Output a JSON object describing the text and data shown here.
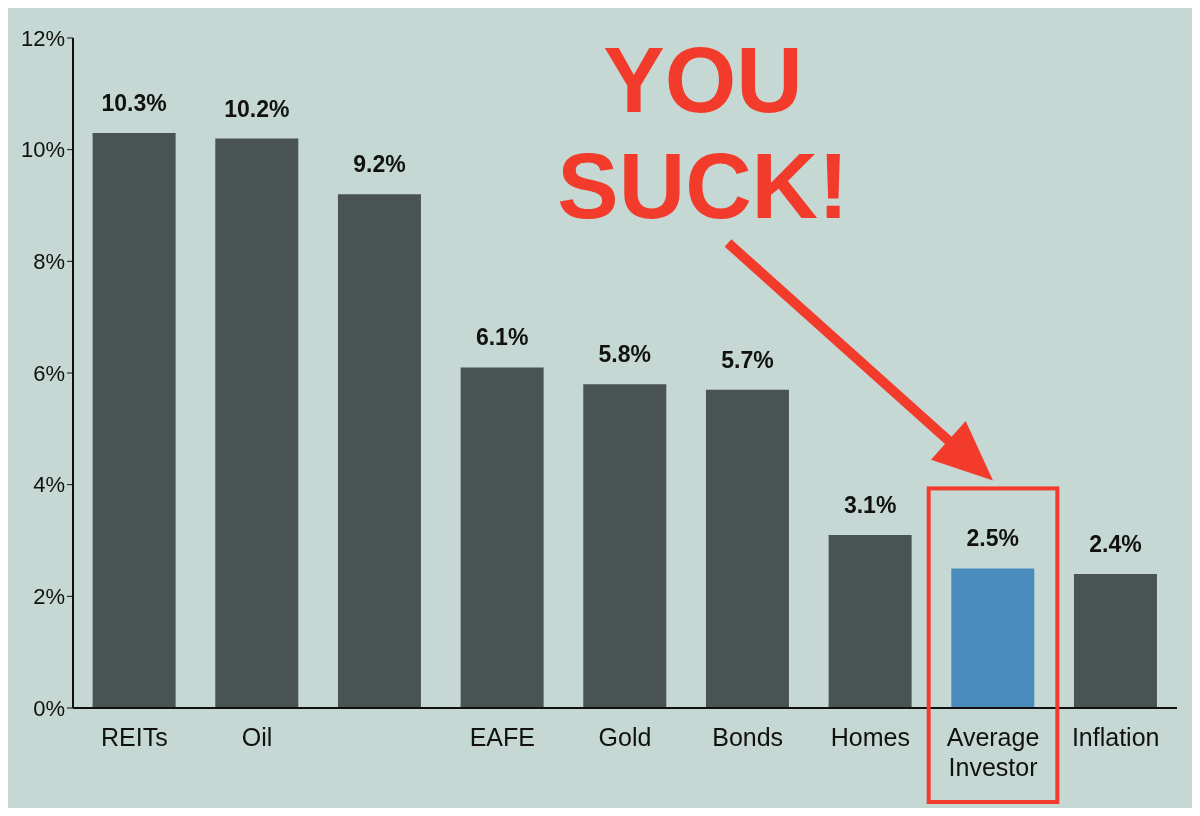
{
  "chart_data": {
    "type": "bar",
    "categories": [
      "REITs",
      "Oil",
      null,
      "EAFE",
      "Gold",
      "Bonds",
      "Homes",
      "Average Investor",
      "Inflation"
    ],
    "values": [
      10.3,
      10.2,
      9.2,
      6.1,
      5.8,
      5.7,
      3.1,
      2.5,
      2.4
    ],
    "value_labels": [
      "10.3%",
      "10.2%",
      "9.2%",
      "6.1%",
      "5.8%",
      "5.7%",
      "3.1%",
      "2.5%",
      "2.4%"
    ],
    "colors": [
      "#485352",
      "#485352",
      "#485352",
      "#485352",
      "#485352",
      "#485352",
      "#485352",
      "#4a8dbd",
      "#485352"
    ],
    "ylim": [
      0,
      12
    ],
    "yticks": [
      {
        "value": 0,
        "label": "0%"
      },
      {
        "value": 2,
        "label": "2%"
      },
      {
        "value": 4,
        "label": "4%"
      },
      {
        "value": 6,
        "label": "6%"
      },
      {
        "value": 8,
        "label": "8%"
      },
      {
        "value": 10,
        "label": "10%"
      },
      {
        "value": 12,
        "label": "12%"
      }
    ],
    "annotations": [
      "YOU SUCK!"
    ]
  }
}
